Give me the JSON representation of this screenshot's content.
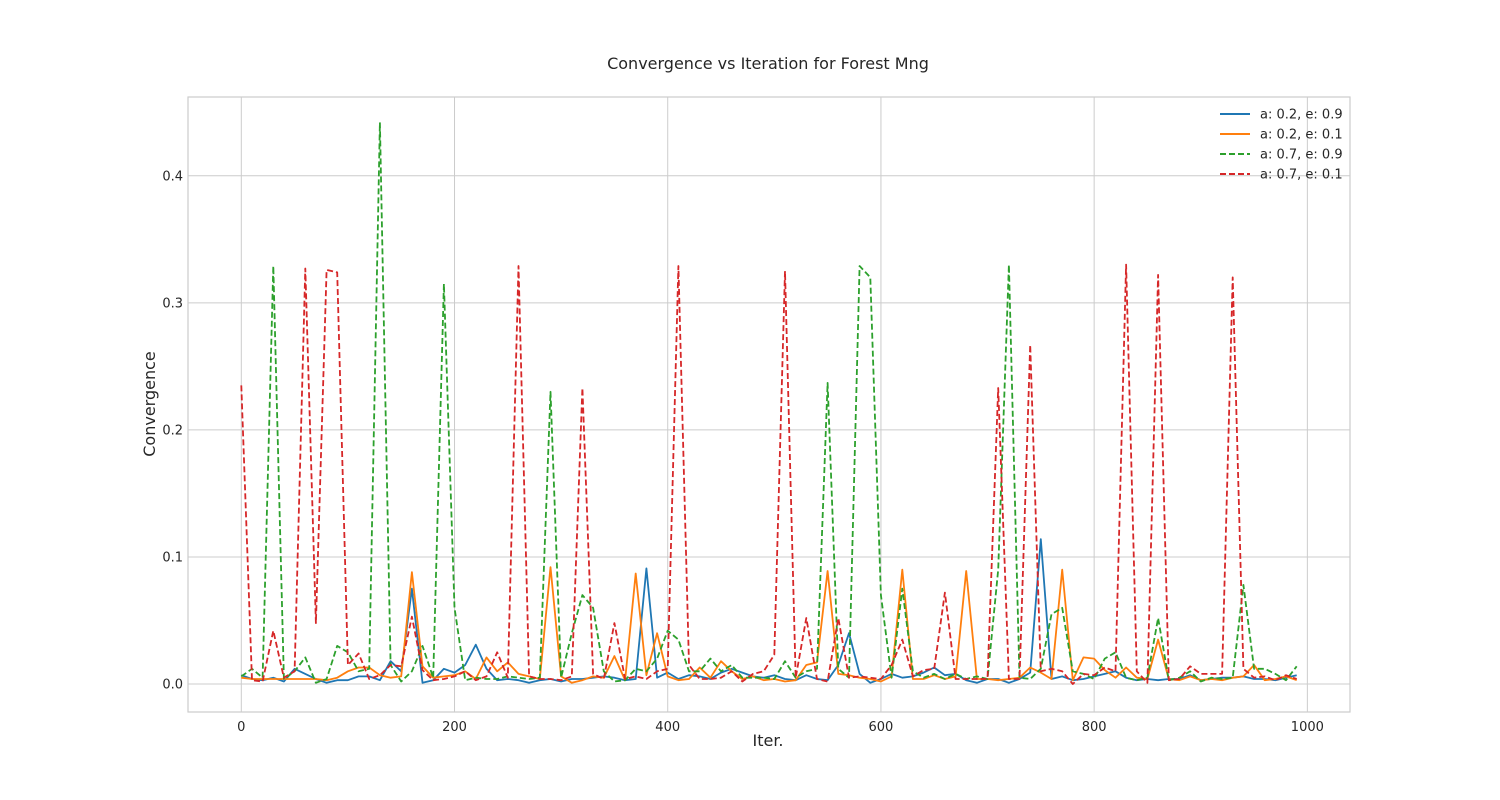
{
  "chart_data": {
    "type": "line",
    "title": "Convergence vs Iteration for Forest Mng",
    "xlabel": "Iter.",
    "ylabel": "Convergence",
    "xlim": [
      -50,
      1040
    ],
    "ylim": [
      -0.022,
      0.462
    ],
    "xticks": [
      0,
      200,
      400,
      600,
      800,
      1000
    ],
    "xtick_labels": [
      "0",
      "200",
      "400",
      "600",
      "800",
      "1000"
    ],
    "yticks": [
      0.0,
      0.1,
      0.2,
      0.3,
      0.4
    ],
    "ytick_labels": [
      "0.0",
      "0.1",
      "0.2",
      "0.3",
      "0.4"
    ],
    "grid": true,
    "legend": "top-right",
    "x": [
      0,
      10,
      20,
      30,
      40,
      50,
      60,
      70,
      80,
      90,
      100,
      110,
      120,
      130,
      140,
      150,
      160,
      170,
      180,
      190,
      200,
      210,
      220,
      230,
      240,
      250,
      260,
      270,
      280,
      290,
      300,
      310,
      320,
      330,
      340,
      350,
      360,
      370,
      380,
      390,
      400,
      410,
      420,
      430,
      440,
      450,
      460,
      470,
      480,
      490,
      500,
      510,
      520,
      530,
      540,
      550,
      560,
      570,
      580,
      590,
      600,
      610,
      620,
      630,
      640,
      650,
      660,
      670,
      680,
      690,
      700,
      710,
      720,
      730,
      740,
      750,
      760,
      770,
      780,
      790,
      800,
      810,
      820,
      830,
      840,
      850,
      860,
      870,
      880,
      890,
      900,
      910,
      920,
      930,
      940,
      950,
      960,
      970,
      980,
      990
    ],
    "series": [
      {
        "name": "a: 0.2, e: 0.9",
        "color": "#1f77b4",
        "style": "solid",
        "values": [
          0.007,
          0.004,
          0.003,
          0.005,
          0.002,
          0.012,
          0.008,
          0.004,
          0.001,
          0.003,
          0.003,
          0.006,
          0.006,
          0.003,
          0.018,
          0.01,
          0.075,
          0.001,
          0.003,
          0.012,
          0.009,
          0.015,
          0.031,
          0.012,
          0.003,
          0.004,
          0.003,
          0.001,
          0.003,
          0.004,
          0.002,
          0.004,
          0.004,
          0.005,
          0.006,
          0.005,
          0.003,
          0.004,
          0.091,
          0.005,
          0.009,
          0.004,
          0.007,
          0.006,
          0.004,
          0.009,
          0.012,
          0.009,
          0.006,
          0.005,
          0.007,
          0.004,
          0.003,
          0.007,
          0.004,
          0.003,
          0.015,
          0.04,
          0.008,
          0.001,
          0.004,
          0.008,
          0.005,
          0.006,
          0.009,
          0.013,
          0.007,
          0.008,
          0.003,
          0.001,
          0.004,
          0.004,
          0.001,
          0.004,
          0.009,
          0.114,
          0.004,
          0.006,
          0.003,
          0.004,
          0.006,
          0.008,
          0.01,
          0.005,
          0.003,
          0.004,
          0.003,
          0.004,
          0.004,
          0.007,
          0.003,
          0.004,
          0.005,
          0.005,
          0.006,
          0.004,
          0.004,
          0.003,
          0.005,
          0.007
        ]
      },
      {
        "name": "a: 0.2, e: 0.1",
        "color": "#ff7f0e",
        "style": "solid",
        "values": [
          0.005,
          0.004,
          0.004,
          0.004,
          0.004,
          0.004,
          0.004,
          0.004,
          0.003,
          0.005,
          0.01,
          0.013,
          0.013,
          0.007,
          0.005,
          0.006,
          0.088,
          0.014,
          0.005,
          0.006,
          0.007,
          0.01,
          0.004,
          0.021,
          0.01,
          0.017,
          0.008,
          0.006,
          0.004,
          0.092,
          0.006,
          0.001,
          0.003,
          0.006,
          0.005,
          0.022,
          0.003,
          0.087,
          0.007,
          0.04,
          0.006,
          0.003,
          0.004,
          0.013,
          0.005,
          0.018,
          0.01,
          0.004,
          0.006,
          0.003,
          0.004,
          0.002,
          0.003,
          0.015,
          0.017,
          0.089,
          0.008,
          0.007,
          0.005,
          0.004,
          0.002,
          0.006,
          0.09,
          0.004,
          0.004,
          0.007,
          0.004,
          0.006,
          0.089,
          0.004,
          0.004,
          0.003,
          0.004,
          0.005,
          0.013,
          0.009,
          0.004,
          0.09,
          0.003,
          0.021,
          0.02,
          0.011,
          0.005,
          0.013,
          0.005,
          0.004,
          0.035,
          0.004,
          0.003,
          0.006,
          0.003,
          0.004,
          0.003,
          0.005,
          0.006,
          0.015,
          0.003,
          0.004,
          0.006,
          0.003
        ]
      },
      {
        "name": "a: 0.7, e: 0.9",
        "color": "#2ca02c",
        "style": "dashed",
        "values": [
          0.006,
          0.012,
          0.005,
          0.329,
          0.004,
          0.01,
          0.021,
          0.001,
          0.004,
          0.03,
          0.025,
          0.01,
          0.012,
          0.442,
          0.015,
          0.002,
          0.01,
          0.03,
          0.005,
          0.315,
          0.06,
          0.003,
          0.005,
          0.004,
          0.004,
          0.006,
          0.005,
          0.004,
          0.005,
          0.23,
          0.005,
          0.04,
          0.07,
          0.06,
          0.01,
          0.002,
          0.003,
          0.012,
          0.01,
          0.02,
          0.042,
          0.035,
          0.01,
          0.01,
          0.02,
          0.01,
          0.015,
          0.005,
          0.005,
          0.005,
          0.004,
          0.018,
          0.005,
          0.01,
          0.012,
          0.237,
          0.012,
          0.005,
          0.329,
          0.32,
          0.07,
          0.005,
          0.075,
          0.01,
          0.005,
          0.008,
          0.004,
          0.008,
          0.004,
          0.006,
          0.004,
          0.09,
          0.33,
          0.005,
          0.004,
          0.012,
          0.055,
          0.06,
          0.01,
          0.008,
          0.004,
          0.02,
          0.025,
          0.005,
          0.003,
          0.005,
          0.052,
          0.003,
          0.005,
          0.01,
          0.002,
          0.005,
          0.004,
          0.005,
          0.078,
          0.012,
          0.012,
          0.008,
          0.003,
          0.014
        ]
      },
      {
        "name": "a: 0.7, e: 0.1",
        "color": "#d62728",
        "style": "dashed",
        "values": [
          0.235,
          0.003,
          0.002,
          0.042,
          0.005,
          0.01,
          0.327,
          0.048,
          0.326,
          0.324,
          0.015,
          0.024,
          0.004,
          0.007,
          0.015,
          0.014,
          0.053,
          0.011,
          0.003,
          0.004,
          0.006,
          0.01,
          0.003,
          0.006,
          0.025,
          0.005,
          0.329,
          0.006,
          0.004,
          0.004,
          0.003,
          0.006,
          0.233,
          0.008,
          0.004,
          0.048,
          0.004,
          0.006,
          0.004,
          0.01,
          0.012,
          0.329,
          0.015,
          0.004,
          0.004,
          0.005,
          0.01,
          0.002,
          0.008,
          0.01,
          0.023,
          0.325,
          0.005,
          0.052,
          0.004,
          0.002,
          0.052,
          0.005,
          0.006,
          0.005,
          0.004,
          0.015,
          0.035,
          0.006,
          0.011,
          0.012,
          0.072,
          0.004,
          0.004,
          0.004,
          0.004,
          0.233,
          0.004,
          0.004,
          0.267,
          0.01,
          0.012,
          0.01,
          0.0,
          0.008,
          0.007,
          0.013,
          0.01,
          0.33,
          0.01,
          0.001,
          0.322,
          0.003,
          0.004,
          0.014,
          0.008,
          0.008,
          0.008,
          0.32,
          0.012,
          0.005,
          0.006,
          0.003,
          0.007,
          0.004
        ]
      }
    ]
  }
}
